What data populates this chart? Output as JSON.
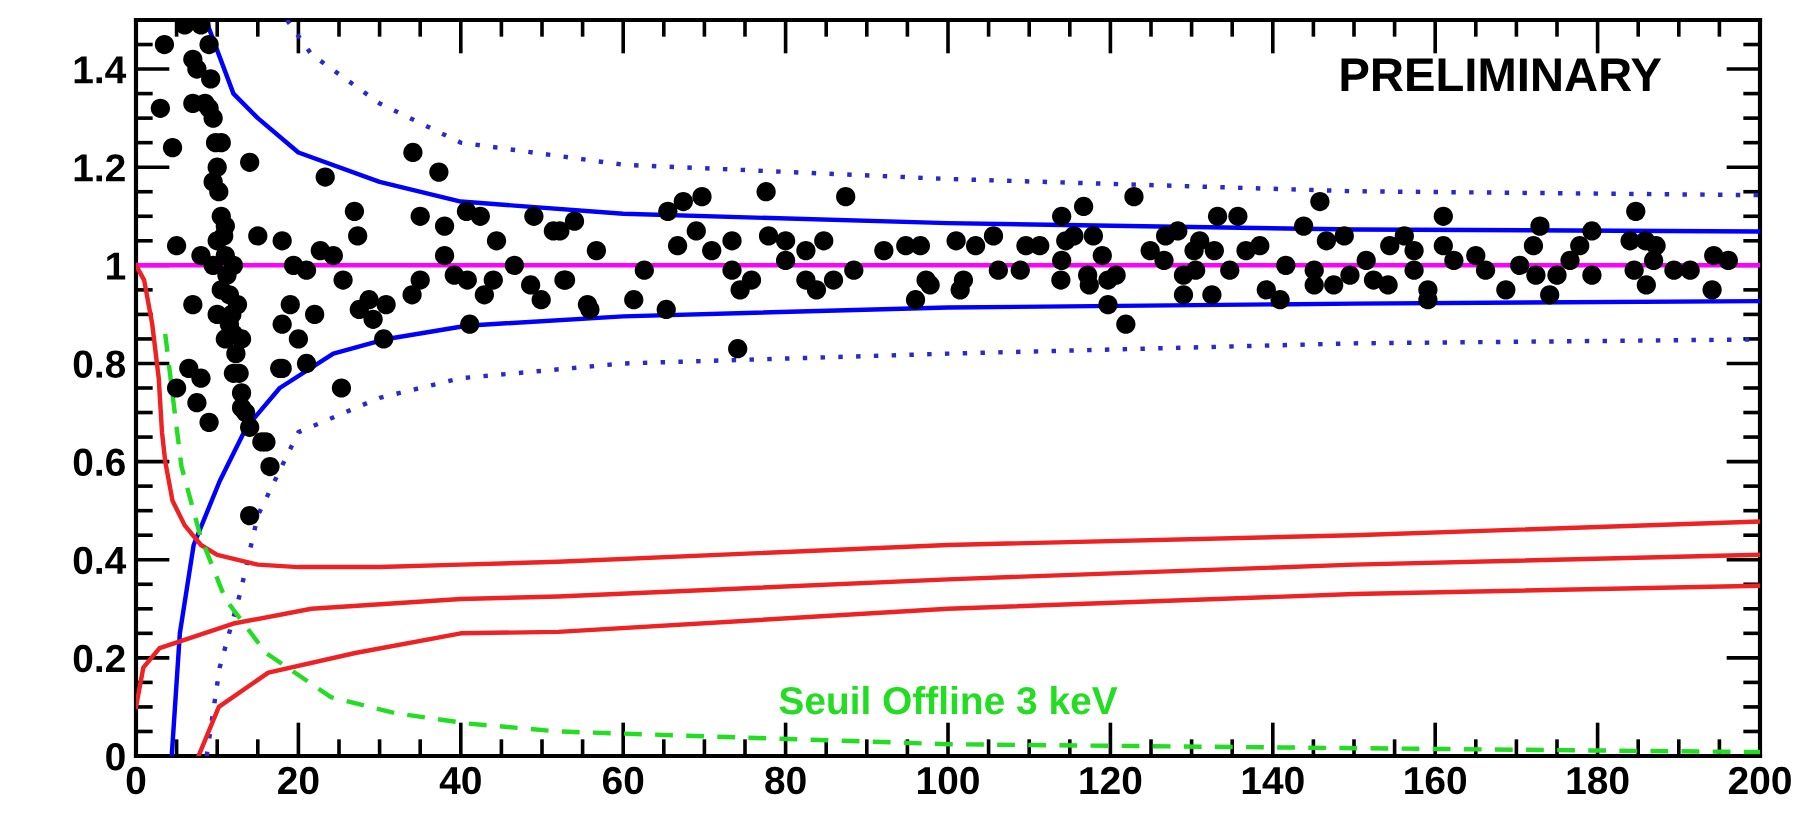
{
  "chart_data": {
    "type": "scatter",
    "annotations": [
      "PRELIMINARY"
    ],
    "xlim": [
      0,
      200
    ],
    "ylim": [
      0,
      1.5
    ],
    "xticks": [
      0,
      20,
      40,
      60,
      80,
      100,
      120,
      140,
      160,
      180,
      200
    ],
    "yticks": [
      0,
      0.2,
      0.4,
      0.6,
      0.8,
      1,
      1.2,
      1.4
    ],
    "grid": false,
    "legend": false,
    "series": [
      {
        "type": "line",
        "color": "#ff00ff",
        "line_style": "solid",
        "x": [
          0,
          200
        ],
        "values": [
          1,
          1
        ]
      },
      {
        "type": "line",
        "color": "#0000ff",
        "line_style": "solid",
        "x": [
          8.6,
          12,
          15,
          20,
          30,
          40,
          60,
          100,
          150,
          200
        ],
        "values": [
          1.5,
          1.35,
          1.3,
          1.23,
          1.17,
          1.13,
          1.105,
          1.086,
          1.073,
          1.069
        ]
      },
      {
        "type": "line",
        "color": "#0000ff",
        "line_style": "solid",
        "x": [
          4.4,
          5.4,
          7.1,
          10.3,
          13.6,
          17.7,
          24.3,
          30.9,
          40.7,
          60,
          100,
          150,
          200
        ],
        "values": [
          0,
          0.25,
          0.43,
          0.56,
          0.67,
          0.75,
          0.82,
          0.85,
          0.877,
          0.896,
          0.914,
          0.922,
          0.927
        ]
      },
      {
        "type": "line",
        "color": "#2a2acc",
        "line_style": "dotted",
        "x": [
          18.6,
          21.6,
          30,
          40,
          60,
          100,
          150,
          200
        ],
        "values": [
          1.5,
          1.43,
          1.33,
          1.25,
          1.205,
          1.176,
          1.151,
          1.143
        ]
      },
      {
        "type": "line",
        "color": "#2a2acc",
        "line_style": "dotted",
        "x": [
          8.7,
          10.3,
          12.8,
          15,
          20,
          30,
          40,
          60,
          100,
          150,
          200
        ],
        "values": [
          0,
          0.18,
          0.33,
          0.49,
          0.66,
          0.73,
          0.77,
          0.8,
          0.82,
          0.841,
          0.849
        ]
      },
      {
        "type": "line",
        "color": "#ee2222",
        "line_style": "solid",
        "x": [
          0,
          1,
          2,
          2.8,
          3.2,
          3.6,
          4.5,
          6,
          8,
          10,
          15,
          20,
          30,
          40,
          52,
          100,
          150,
          200
        ],
        "values": [
          1,
          0.97,
          0.88,
          0.77,
          0.66,
          0.6,
          0.52,
          0.47,
          0.43,
          0.41,
          0.39,
          0.385,
          0.385,
          0.39,
          0.396,
          0.43,
          0.45,
          0.478
        ]
      },
      {
        "type": "line",
        "color": "#ee2222",
        "line_style": "solid",
        "x": [
          0,
          0.9,
          2.9,
          12,
          21.6,
          40,
          52,
          100,
          150,
          200
        ],
        "values": [
          0.1,
          0.18,
          0.22,
          0.27,
          0.3,
          0.32,
          0.325,
          0.36,
          0.39,
          0.41
        ]
      },
      {
        "type": "line",
        "color": "#ee2222",
        "line_style": "solid",
        "x": [
          7.7,
          10.2,
          16.3,
          27,
          40,
          52,
          100,
          150,
          200
        ],
        "values": [
          0,
          0.1,
          0.17,
          0.21,
          0.25,
          0.253,
          0.3,
          0.33,
          0.347
        ]
      },
      {
        "type": "line",
        "name": "Seuil Offline 3 keV",
        "color": "#22dd22",
        "line_style": "dashed",
        "x": [
          3.6,
          4.4,
          5.6,
          7.9,
          11,
          16,
          24,
          32,
          41,
          52,
          100,
          200
        ],
        "values": [
          0.86,
          0.75,
          0.59,
          0.45,
          0.32,
          0.21,
          0.12,
          0.087,
          0.066,
          0.05,
          0.024,
          0.008
        ]
      },
      {
        "color": "#000000",
        "marker": "circle",
        "x": [
          3.5,
          6,
          7,
          8,
          7.5,
          3,
          7,
          8.5,
          9,
          4.5,
          5,
          8,
          7,
          6.5,
          8,
          5,
          7.5,
          9,
          13,
          14,
          15,
          18,
          18,
          18,
          19,
          20,
          21,
          21,
          22,
          16,
          15.5,
          16.5,
          14,
          14,
          9,
          9.2,
          9.5,
          9.8,
          10,
          10.2,
          10.5,
          10.8,
          11,
          11.2,
          11.5,
          11.8,
          12,
          12.3,
          12.7,
          13,
          13.5,
          10,
          11,
          12,
          10.5,
          11.5,
          12.5,
          9.5,
          13,
          12,
          10,
          11,
          9.5,
          10.5,
          23.3,
          26.9,
          27.3,
          34.1,
          37.3,
          35,
          38,
          40.7,
          42.4,
          44.4,
          49,
          51.4,
          54,
          22.7,
          24.3,
          25.5,
          27.5,
          28.7,
          29.2,
          30.8,
          30.5,
          34,
          35,
          38,
          39.2,
          40.8,
          42.9,
          44,
          46.6,
          48.6,
          49.9,
          52.7,
          55.6,
          41.1,
          19.4,
          25.3,
          17.7,
          52.2,
          56.7,
          52.9,
          55.9,
          61.3,
          62.6,
          65.3,
          65.5,
          67.4,
          69.7,
          66.7,
          69,
          70.9,
          73.4,
          73.4,
          74.4,
          75.8,
          74.1,
          77.6,
          77.9,
          80,
          80,
          82.5,
          84.7,
          82.5,
          83.8,
          85.9,
          87.4,
          88.4,
          92.1,
          94.8,
          96.6,
          96,
          97.3,
          97.8,
          101,
          101.5,
          101.9,
          103.4,
          105.6,
          106.2,
          108.9,
          109.6,
          111.3,
          114,
          116.7,
          114.5,
          114,
          113.9,
          115.5,
          117.9,
          119,
          117.2,
          117.4,
          119.7,
          120.7,
          119.7,
          121.9,
          122.9,
          124.9,
          126.8,
          128.3,
          126.6,
          129,
          129,
          130.3,
          131,
          130.5,
          133.2,
          135.7,
          132.8,
          132.5,
          134.7,
          136.7,
          138.4,
          139.2,
          140.9,
          141.6,
          143.8,
          145.8,
          145.1,
          145.1,
          146.6,
          148.8,
          147.5,
          149.5,
          151.5,
          152.4,
          154.2,
          154.4,
          156.2,
          157.4,
          157.4,
          159.1,
          159.1,
          161,
          161,
          162.3,
          165,
          166.2,
          168.7,
          170.4,
          172.1,
          172.9,
          172.4,
          174.1,
          175,
          176.6,
          177.8,
          179.3,
          179.3,
          184.7,
          184,
          185.9,
          184.5,
          186,
          187.2,
          186.9,
          189.4,
          191.4,
          194.1,
          194.3,
          196.1
        ],
        "values": [
          1.45,
          1.49,
          1.42,
          1.49,
          1.4,
          1.32,
          1.33,
          1.33,
          1.32,
          1.24,
          1.04,
          1.02,
          0.92,
          0.79,
          0.77,
          0.75,
          0.72,
          0.68,
          0.71,
          1.21,
          1.06,
          1.05,
          0.79,
          0.88,
          0.92,
          0.85,
          0.99,
          0.8,
          0.9,
          0.64,
          0.64,
          0.59,
          0.49,
          0.67,
          1.45,
          1.38,
          1.3,
          1.25,
          1.2,
          1.15,
          1.1,
          1.06,
          1.02,
          0.98,
          0.94,
          0.9,
          0.86,
          0.82,
          0.78,
          0.74,
          0.7,
          1.05,
          1.08,
          1.0,
          0.95,
          0.88,
          0.92,
          1.0,
          0.85,
          0.78,
          0.9,
          0.85,
          1.17,
          1.25,
          1.18,
          1.11,
          1.06,
          1.23,
          1.19,
          1.1,
          1.08,
          1.11,
          1.1,
          1.05,
          1.1,
          1.07,
          1.09,
          1.03,
          1.02,
          0.97,
          0.91,
          0.93,
          0.89,
          0.92,
          0.85,
          0.94,
          0.97,
          1.02,
          0.98,
          0.97,
          0.94,
          0.97,
          1.0,
          0.96,
          0.93,
          0.97,
          0.92,
          0.88,
          1.0,
          0.75,
          0.79,
          1.07,
          1.03,
          0.97,
          0.91,
          0.93,
          0.99,
          0.91,
          1.11,
          1.13,
          1.14,
          1.04,
          1.07,
          1.03,
          1.05,
          0.99,
          0.95,
          0.97,
          0.83,
          1.15,
          1.06,
          1.05,
          1.01,
          1.03,
          1.05,
          0.97,
          0.95,
          0.97,
          1.14,
          0.99,
          1.03,
          1.04,
          1.04,
          0.93,
          0.97,
          0.96,
          1.05,
          0.95,
          0.97,
          1.04,
          1.06,
          0.99,
          0.99,
          1.04,
          1.04,
          1.1,
          1.12,
          1.05,
          1.01,
          0.97,
          1.06,
          1.06,
          1.02,
          0.98,
          0.96,
          0.97,
          0.98,
          0.92,
          0.88,
          1.14,
          1.03,
          1.06,
          1.07,
          1.01,
          0.98,
          0.94,
          1.03,
          1.05,
          0.99,
          1.1,
          1.1,
          1.03,
          0.94,
          0.99,
          1.03,
          1.04,
          0.95,
          0.93,
          1.0,
          1.08,
          1.13,
          0.99,
          0.96,
          1.05,
          1.06,
          0.96,
          0.98,
          1.01,
          0.97,
          0.96,
          1.04,
          1.06,
          1.03,
          0.99,
          0.95,
          0.93,
          1.1,
          1.04,
          1.01,
          1.02,
          0.99,
          0.95,
          1.0,
          1.04,
          1.08,
          0.98,
          0.94,
          0.98,
          1.01,
          1.04,
          1.07,
          0.98,
          1.11,
          1.05,
          1.05,
          0.99,
          0.96,
          1.04,
          1.01,
          0.99,
          0.99,
          0.95,
          1.02,
          1.01
        ]
      }
    ]
  }
}
